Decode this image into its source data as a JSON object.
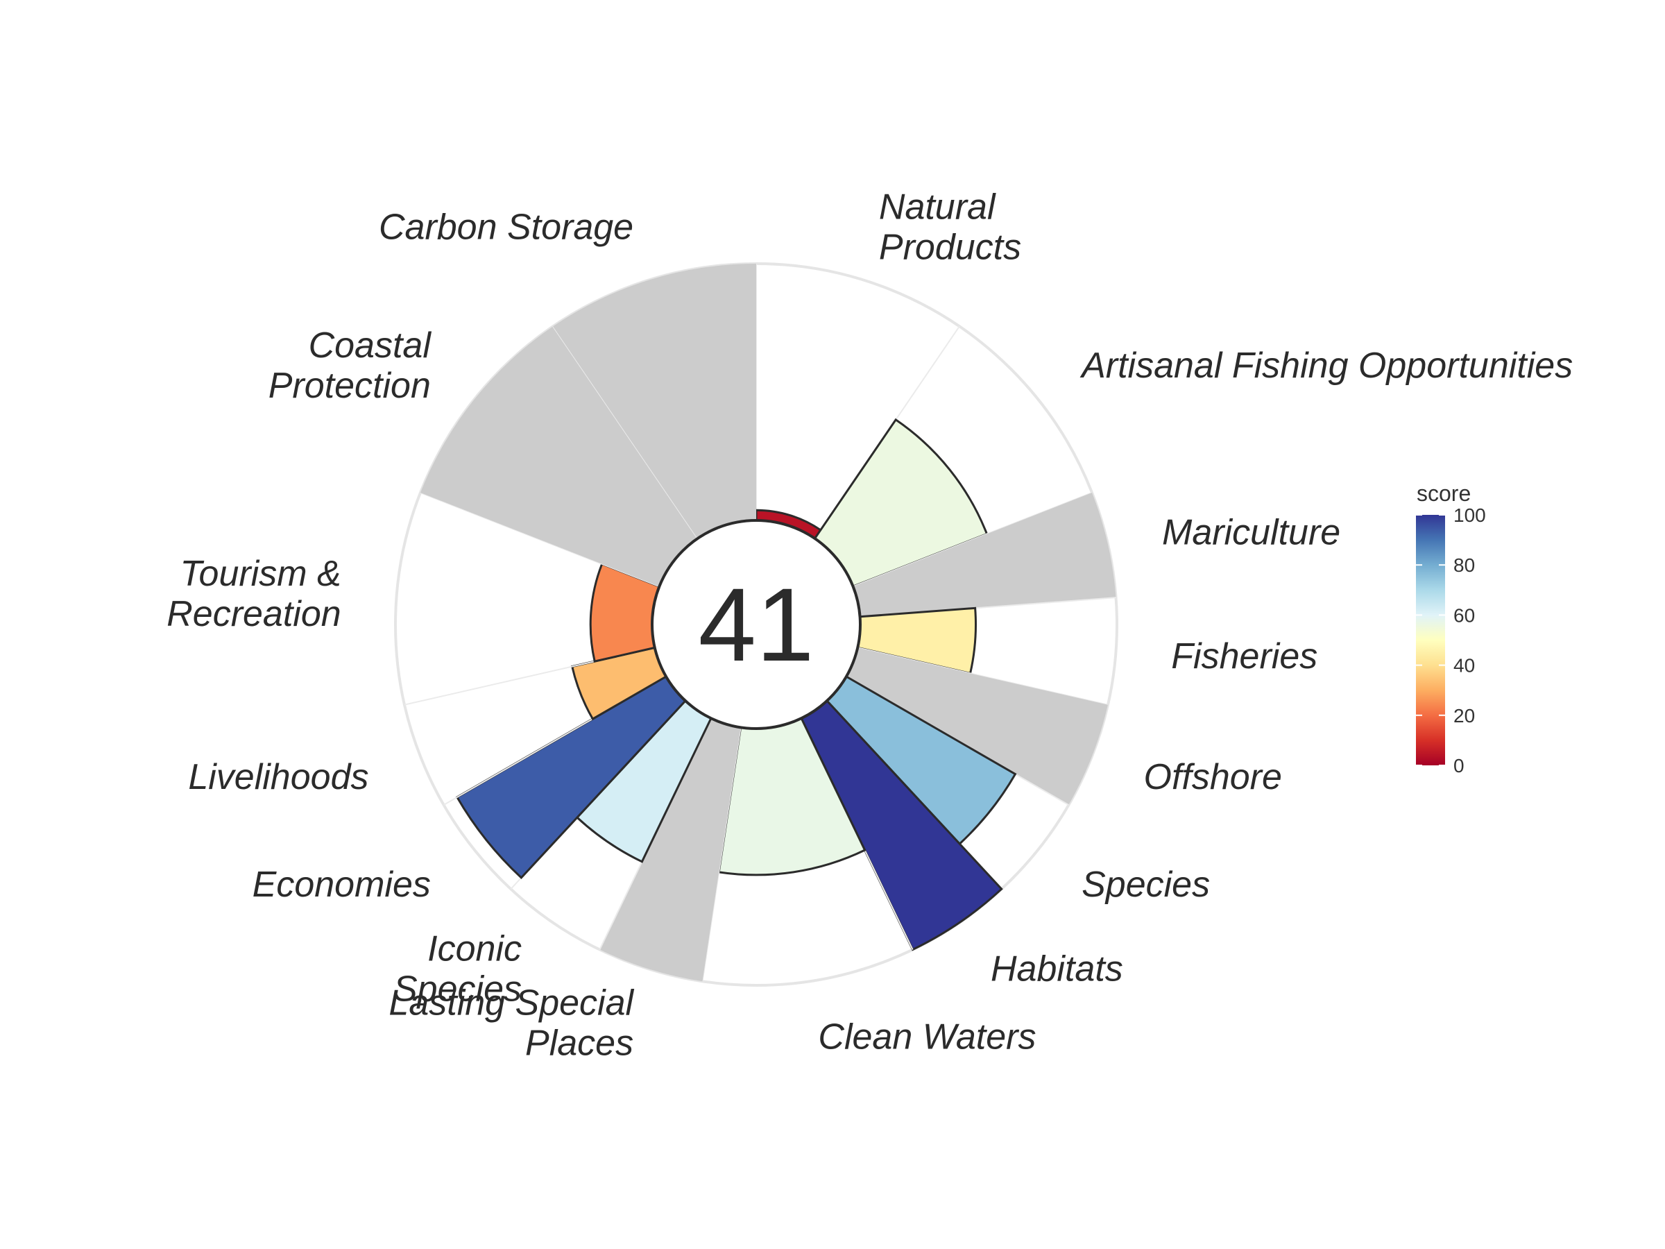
{
  "chart_data": {
    "type": "polar-bar",
    "overall_score": "41",
    "max_score": 100,
    "goals": [
      {
        "label": [
          "Natural",
          "Products"
        ],
        "score": 4,
        "weight": 1
      },
      {
        "label": [
          "Artisanal Fishing Opportunities"
        ],
        "score": 56,
        "weight": 1
      },
      {
        "label": [
          "Mariculture"
        ],
        "score": null,
        "weight": 0.5
      },
      {
        "label": [
          "Fisheries"
        ],
        "score": 45,
        "weight": 0.5
      },
      {
        "label": [
          "Offshore"
        ],
        "score": null,
        "weight": 0.5
      },
      {
        "label": [
          "Species"
        ],
        "score": 76,
        "weight": 0.5
      },
      {
        "label": [
          "Habitats"
        ],
        "score": 100,
        "weight": 0.5
      },
      {
        "label": [
          "Clean Waters"
        ],
        "score": 57,
        "weight": 1
      },
      {
        "label": [
          "Lasting Special",
          "Places"
        ],
        "score": null,
        "weight": 0.5
      },
      {
        "label": [
          "Iconic",
          "Species"
        ],
        "score": 62,
        "weight": 0.5
      },
      {
        "label": [
          "Economies"
        ],
        "score": 94,
        "weight": 0.5
      },
      {
        "label": [
          "Livelihoods"
        ],
        "score": 33,
        "weight": 0.5
      },
      {
        "label": [
          "Tourism &",
          "Recreation"
        ],
        "score": 24,
        "weight": 1
      },
      {
        "label": [
          "Coastal",
          "Protection"
        ],
        "score": null,
        "weight": 1
      },
      {
        "label": [
          "Carbon Storage"
        ],
        "score": null,
        "weight": 1
      }
    ],
    "missing_color": "#cccccc",
    "legend": {
      "title": "score",
      "ticks": [
        "0",
        "20",
        "40",
        "60",
        "80",
        "100"
      ],
      "position": "right"
    },
    "color_scale": [
      "#a50026",
      "#d73027",
      "#f46d43",
      "#fdae61",
      "#fee090",
      "#ffffbf",
      "#e0f3f8",
      "#abd9e9",
      "#74add1",
      "#4575b4",
      "#313695"
    ]
  }
}
